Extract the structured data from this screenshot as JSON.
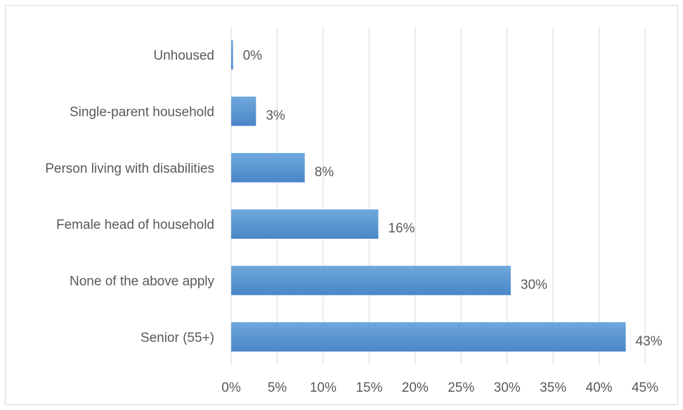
{
  "chart_data": {
    "type": "bar",
    "orientation": "horizontal",
    "categories": [
      "Unhoused",
      "Single-parent household",
      "Person living with disabilities",
      "Female head of household",
      "None of the above apply",
      "Senior (55+)"
    ],
    "values": [
      0.2,
      2.7,
      8.0,
      16.0,
      30.4,
      42.9
    ],
    "data_labels": [
      "0%",
      "3%",
      "8%",
      "16%",
      "30%",
      "43%"
    ],
    "xlim": [
      0,
      45
    ],
    "xticks": [
      0,
      5,
      10,
      15,
      20,
      25,
      30,
      35,
      40,
      45
    ],
    "xtick_labels": [
      "0%",
      "5%",
      "10%",
      "15%",
      "20%",
      "25%",
      "30%",
      "35%",
      "40%",
      "45%"
    ],
    "title": "",
    "xlabel": "",
    "ylabel": "",
    "grid": "vertical",
    "legend": "none",
    "colors": {
      "bar_top": "#6fa8dc",
      "bar_bottom": "#4a86c8",
      "grid": "#d9d9d9",
      "text": "#595959"
    }
  }
}
